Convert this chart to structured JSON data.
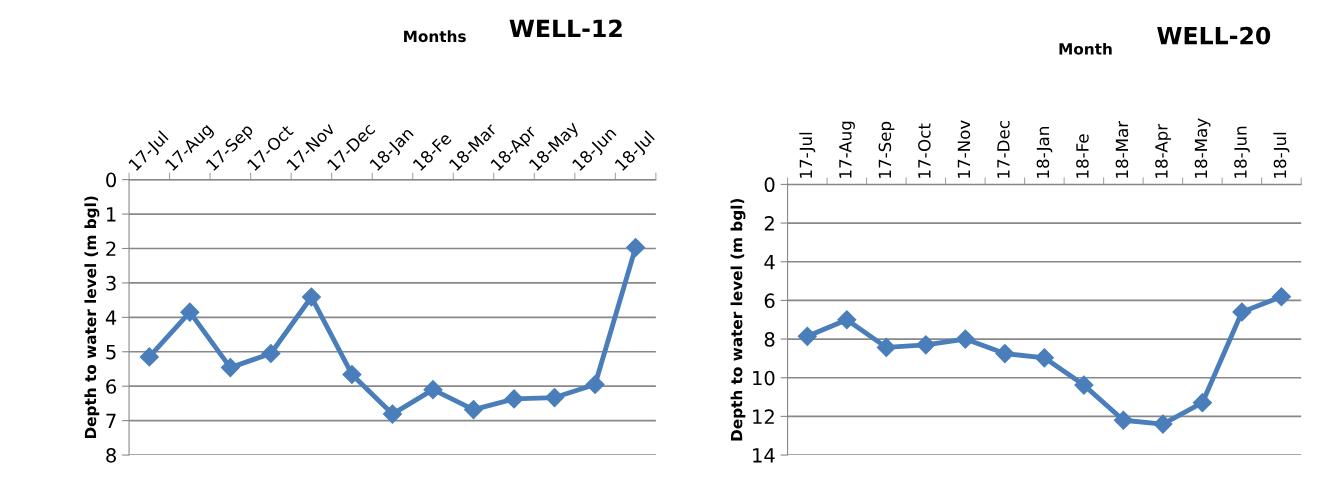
{
  "chart_data": [
    {
      "type": "line",
      "title": "WELL-12",
      "xlabel": "Months",
      "ylabel": "Depth to water level (m bgl)",
      "categories": [
        "17-Jul",
        "17-Aug",
        "17-Sep",
        "17-Oct",
        "17-Nov",
        "17-Dec",
        "18-Jan",
        "18-Fe",
        "18-Mar",
        "18-Apr",
        "18-May",
        "18-Jun",
        "18-Jul"
      ],
      "series": [
        {
          "color": "#4a7ebb",
          "values": [
            5.15,
            3.85,
            5.46,
            5.05,
            3.41,
            5.66,
            6.81,
            6.1,
            6.68,
            6.37,
            6.33,
            5.95,
            1.97
          ]
        }
      ],
      "ylim": [
        8,
        0
      ],
      "yticks": [
        0,
        1,
        2,
        3,
        4,
        5,
        6,
        7,
        8
      ],
      "grid": "y",
      "marker": "diamond",
      "line_style": "solid"
    },
    {
      "type": "line",
      "title": "WELL-20",
      "xlabel": "Month",
      "ylabel": "Depth to water level (m bgl)",
      "categories": [
        "17-Jul",
        "17-Aug",
        "17-Sep",
        "17-Oct",
        "17-Nov",
        "17-Dec",
        "18-Jan",
        "18-Fe",
        "18-Mar",
        "18-Apr",
        "18-May",
        "18-Jun",
        "18-Jul"
      ],
      "series": [
        {
          "color": "#4a7ebb",
          "values": [
            7.86,
            7.0,
            8.43,
            8.3,
            8.0,
            8.75,
            8.97,
            10.38,
            12.2,
            12.4,
            11.29,
            6.6,
            5.81
          ]
        }
      ],
      "ylim": [
        14,
        0
      ],
      "yticks": [
        0,
        2,
        4,
        6,
        8,
        10,
        12,
        14
      ],
      "grid": "y",
      "marker": "diamond",
      "line_style": "solid"
    }
  ]
}
